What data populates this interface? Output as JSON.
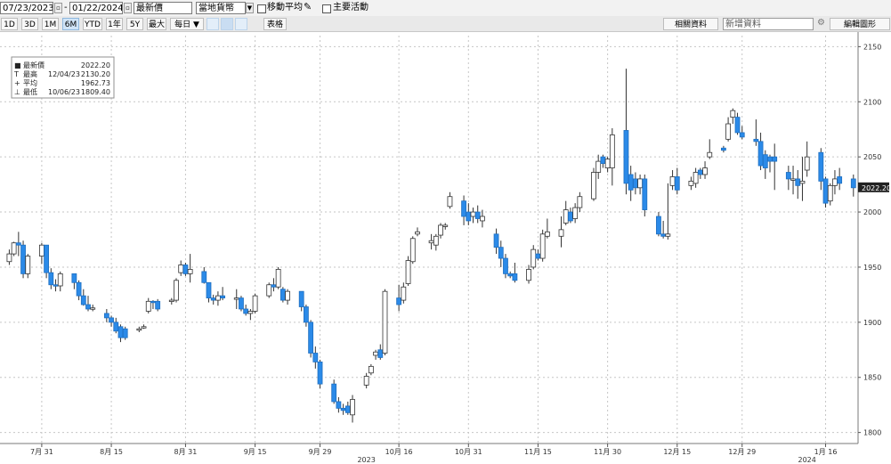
{
  "toolbar": {
    "start_date": "07/23/2023",
    "end_date": "01/22/2024",
    "price_type": "最新價",
    "currency": "當地貨幣",
    "moving_avg_label": "移動平均",
    "key_events_label": "主要活動",
    "periods": [
      "1D",
      "3D",
      "1M",
      "6M",
      "YTD",
      "1年",
      "5Y",
      "最大"
    ],
    "active_period": "6M",
    "frequency": "每日 ▼",
    "table_label": "表格",
    "related_data": "相關資料",
    "new_data": "新增資料",
    "edit_chart": "編輯圖形",
    "icons": [
      "calendar-icon",
      "dropdown-arrow-icon",
      "pencil-icon",
      "settings-icon"
    ]
  },
  "price_flag": "2022.20",
  "legend": {
    "rows": [
      {
        "symbol": "■",
        "name": "最新價",
        "date": "",
        "value": "2022.20"
      },
      {
        "symbol": "T",
        "name": "最高",
        "date": "12/04/23",
        "value": "2130.20"
      },
      {
        "symbol": "+",
        "name": "平均",
        "date": "",
        "value": "1962.73"
      },
      {
        "symbol": "⊥",
        "name": "最低",
        "date": "10/06/23",
        "value": "1809.40"
      }
    ]
  },
  "chart_data": {
    "type": "candlestick",
    "title": "",
    "xlabel": "",
    "ylabel": "",
    "ylim": [
      1790,
      2160
    ],
    "y_ticks": [
      1800,
      1850,
      1900,
      1950,
      2000,
      2050,
      2100,
      2150
    ],
    "y_tick_labels": [
      "1800",
      "1850",
      "1900",
      "1950",
      "2000",
      "2050",
      "2100",
      "2150"
    ],
    "grid": true,
    "up_color": "#ffffff",
    "down_color": "#2b8ae8",
    "x_ticks": [
      {
        "label": "7月 31",
        "date": "2023-07-31"
      },
      {
        "label": "8月 15",
        "date": "2023-08-15"
      },
      {
        "label": "8月 31",
        "date": "2023-08-31"
      },
      {
        "label": "9月 15",
        "date": "2023-09-15"
      },
      {
        "label": "9月 29",
        "date": "2023-09-29"
      },
      {
        "label": "10月 16",
        "date": "2023-10-16"
      },
      {
        "label": "10月 31",
        "date": "2023-10-31"
      },
      {
        "label": "11月 15",
        "date": "2023-11-15"
      },
      {
        "label": "11月 30",
        "date": "2023-11-30"
      },
      {
        "label": "12月 15",
        "date": "2023-12-15"
      },
      {
        "label": "12月 29",
        "date": "2023-12-29"
      },
      {
        "label": "1月 16",
        "date": "2024-01-16"
      }
    ],
    "year_labels": [
      {
        "label": "2023",
        "date": "2023-10-09"
      },
      {
        "label": "2024",
        "date": "2024-01-12"
      }
    ],
    "series": [
      {
        "d": "2023-07-24",
        "o": 1955,
        "h": 1966,
        "l": 1952,
        "c": 1962
      },
      {
        "d": "2023-07-25",
        "o": 1962,
        "h": 1973,
        "l": 1960,
        "c": 1972
      },
      {
        "d": "2023-07-26",
        "o": 1972,
        "h": 1982,
        "l": 1960,
        "c": 1970
      },
      {
        "d": "2023-07-27",
        "o": 1970,
        "h": 1974,
        "l": 1940,
        "c": 1944
      },
      {
        "d": "2023-07-28",
        "o": 1944,
        "h": 1962,
        "l": 1940,
        "c": 1960
      },
      {
        "d": "2023-07-31",
        "o": 1960,
        "h": 1972,
        "l": 1953,
        "c": 1970
      },
      {
        "d": "2023-08-01",
        "o": 1970,
        "h": 1970,
        "l": 1940,
        "c": 1945
      },
      {
        "d": "2023-08-02",
        "o": 1945,
        "h": 1949,
        "l": 1930,
        "c": 1934
      },
      {
        "d": "2023-08-03",
        "o": 1934,
        "h": 1939,
        "l": 1928,
        "c": 1933
      },
      {
        "d": "2023-08-04",
        "o": 1933,
        "h": 1946,
        "l": 1928,
        "c": 1944
      },
      {
        "d": "2023-08-07",
        "o": 1944,
        "h": 1944,
        "l": 1930,
        "c": 1936
      },
      {
        "d": "2023-08-08",
        "o": 1936,
        "h": 1938,
        "l": 1920,
        "c": 1924
      },
      {
        "d": "2023-08-09",
        "o": 1924,
        "h": 1930,
        "l": 1915,
        "c": 1916
      },
      {
        "d": "2023-08-10",
        "o": 1916,
        "h": 1924,
        "l": 1910,
        "c": 1912
      },
      {
        "d": "2023-08-11",
        "o": 1912,
        "h": 1916,
        "l": 1910,
        "c": 1913
      },
      {
        "d": "2023-08-14",
        "o": 1908,
        "h": 1912,
        "l": 1900,
        "c": 1904
      },
      {
        "d": "2023-08-15",
        "o": 1904,
        "h": 1906,
        "l": 1896,
        "c": 1900
      },
      {
        "d": "2023-08-16",
        "o": 1900,
        "h": 1904,
        "l": 1890,
        "c": 1892
      },
      {
        "d": "2023-08-17",
        "o": 1896,
        "h": 1898,
        "l": 1882,
        "c": 1886
      },
      {
        "d": "2023-08-18",
        "o": 1894,
        "h": 1896,
        "l": 1884,
        "c": 1886
      },
      {
        "d": "2023-08-21",
        "o": 1893,
        "h": 1896,
        "l": 1891,
        "c": 1894
      },
      {
        "d": "2023-08-22",
        "o": 1895,
        "h": 1898,
        "l": 1894,
        "c": 1896
      },
      {
        "d": "2023-08-23",
        "o": 1910,
        "h": 1922,
        "l": 1908,
        "c": 1919
      },
      {
        "d": "2023-08-24",
        "o": 1919,
        "h": 1920,
        "l": 1912,
        "c": 1918
      },
      {
        "d": "2023-08-25",
        "o": 1919,
        "h": 1921,
        "l": 1910,
        "c": 1912
      },
      {
        "d": "2023-08-28",
        "o": 1919,
        "h": 1922,
        "l": 1916,
        "c": 1920
      },
      {
        "d": "2023-08-29",
        "o": 1920,
        "h": 1940,
        "l": 1918,
        "c": 1938
      },
      {
        "d": "2023-08-30",
        "o": 1945,
        "h": 1956,
        "l": 1942,
        "c": 1952
      },
      {
        "d": "2023-08-31",
        "o": 1952,
        "h": 1954,
        "l": 1942,
        "c": 1944
      },
      {
        "d": "2023-09-01",
        "o": 1944,
        "h": 1962,
        "l": 1936,
        "c": 1948
      },
      {
        "d": "2023-09-04",
        "o": 1946,
        "h": 1950,
        "l": 1935,
        "c": 1936
      },
      {
        "d": "2023-09-05",
        "o": 1936,
        "h": 1936,
        "l": 1918,
        "c": 1922
      },
      {
        "d": "2023-09-06",
        "o": 1922,
        "h": 1925,
        "l": 1916,
        "c": 1920
      },
      {
        "d": "2023-09-07",
        "o": 1920,
        "h": 1928,
        "l": 1915,
        "c": 1924
      },
      {
        "d": "2023-09-08",
        "o": 1924,
        "h": 1932,
        "l": 1920,
        "c": 1922
      },
      {
        "d": "2023-09-11",
        "o": 1922,
        "h": 1930,
        "l": 1912,
        "c": 1922
      },
      {
        "d": "2023-09-12",
        "o": 1922,
        "h": 1924,
        "l": 1910,
        "c": 1912
      },
      {
        "d": "2023-09-13",
        "o": 1912,
        "h": 1916,
        "l": 1906,
        "c": 1908
      },
      {
        "d": "2023-09-14",
        "o": 1908,
        "h": 1912,
        "l": 1902,
        "c": 1910
      },
      {
        "d": "2023-09-15",
        "o": 1910,
        "h": 1926,
        "l": 1908,
        "c": 1924
      },
      {
        "d": "2023-09-18",
        "o": 1924,
        "h": 1936,
        "l": 1922,
        "c": 1934
      },
      {
        "d": "2023-09-19",
        "o": 1934,
        "h": 1940,
        "l": 1928,
        "c": 1932
      },
      {
        "d": "2023-09-20",
        "o": 1932,
        "h": 1950,
        "l": 1930,
        "c": 1948
      },
      {
        "d": "2023-09-21",
        "o": 1930,
        "h": 1932,
        "l": 1918,
        "c": 1920
      },
      {
        "d": "2023-09-22",
        "o": 1920,
        "h": 1930,
        "l": 1916,
        "c": 1928
      },
      {
        "d": "2023-09-25",
        "o": 1928,
        "h": 1928,
        "l": 1910,
        "c": 1914
      },
      {
        "d": "2023-09-26",
        "o": 1914,
        "h": 1916,
        "l": 1896,
        "c": 1900
      },
      {
        "d": "2023-09-27",
        "o": 1900,
        "h": 1902,
        "l": 1868,
        "c": 1872
      },
      {
        "d": "2023-09-28",
        "o": 1872,
        "h": 1878,
        "l": 1858,
        "c": 1864
      },
      {
        "d": "2023-09-29",
        "o": 1864,
        "h": 1866,
        "l": 1840,
        "c": 1844
      },
      {
        "d": "2023-10-02",
        "o": 1844,
        "h": 1848,
        "l": 1826,
        "c": 1828
      },
      {
        "d": "2023-10-03",
        "o": 1828,
        "h": 1832,
        "l": 1818,
        "c": 1822
      },
      {
        "d": "2023-10-04",
        "o": 1822,
        "h": 1826,
        "l": 1816,
        "c": 1820
      },
      {
        "d": "2023-10-05",
        "o": 1824,
        "h": 1828,
        "l": 1816,
        "c": 1818
      },
      {
        "d": "2023-10-06",
        "o": 1816,
        "h": 1834,
        "l": 1809,
        "c": 1830
      },
      {
        "d": "2023-10-09",
        "o": 1843,
        "h": 1854,
        "l": 1840,
        "c": 1851
      },
      {
        "d": "2023-10-10",
        "o": 1854,
        "h": 1862,
        "l": 1852,
        "c": 1860
      },
      {
        "d": "2023-10-11",
        "o": 1870,
        "h": 1875,
        "l": 1866,
        "c": 1873
      },
      {
        "d": "2023-10-12",
        "o": 1875,
        "h": 1880,
        "l": 1866,
        "c": 1868
      },
      {
        "d": "2023-10-13",
        "o": 1872,
        "h": 1930,
        "l": 1870,
        "c": 1928
      },
      {
        "d": "2023-10-16",
        "o": 1922,
        "h": 1934,
        "l": 1910,
        "c": 1916
      },
      {
        "d": "2023-10-17",
        "o": 1920,
        "h": 1936,
        "l": 1917,
        "c": 1932
      },
      {
        "d": "2023-10-18",
        "o": 1935,
        "h": 1960,
        "l": 1933,
        "c": 1956
      },
      {
        "d": "2023-10-19",
        "o": 1955,
        "h": 1978,
        "l": 1953,
        "c": 1976
      },
      {
        "d": "2023-10-20",
        "o": 1980,
        "h": 1986,
        "l": 1978,
        "c": 1982
      },
      {
        "d": "2023-10-23",
        "o": 1972,
        "h": 1980,
        "l": 1966,
        "c": 1974
      },
      {
        "d": "2023-10-24",
        "o": 1970,
        "h": 1980,
        "l": 1965,
        "c": 1978
      },
      {
        "d": "2023-10-25",
        "o": 1979,
        "h": 1990,
        "l": 1976,
        "c": 1988
      },
      {
        "d": "2023-10-26",
        "o": 1987,
        "h": 1990,
        "l": 1984,
        "c": 1988
      },
      {
        "d": "2023-10-27",
        "o": 2005,
        "h": 2018,
        "l": 2003,
        "c": 2014
      },
      {
        "d": "2023-10-30",
        "o": 2010,
        "h": 2015,
        "l": 1988,
        "c": 1996
      },
      {
        "d": "2023-10-31",
        "o": 2000,
        "h": 2008,
        "l": 1988,
        "c": 1992
      },
      {
        "d": "2023-11-01",
        "o": 1996,
        "h": 2004,
        "l": 1990,
        "c": 2000
      },
      {
        "d": "2023-11-02",
        "o": 2000,
        "h": 2006,
        "l": 1990,
        "c": 1994
      },
      {
        "d": "2023-11-03",
        "o": 1992,
        "h": 2002,
        "l": 1986,
        "c": 1996
      },
      {
        "d": "2023-11-06",
        "o": 1980,
        "h": 1985,
        "l": 1962,
        "c": 1968
      },
      {
        "d": "2023-11-07",
        "o": 1968,
        "h": 1974,
        "l": 1950,
        "c": 1958
      },
      {
        "d": "2023-11-08",
        "o": 1958,
        "h": 1962,
        "l": 1940,
        "c": 1944
      },
      {
        "d": "2023-11-09",
        "o": 1944,
        "h": 1946,
        "l": 1940,
        "c": 1942
      },
      {
        "d": "2023-11-10",
        "o": 1944,
        "h": 1954,
        "l": 1936,
        "c": 1938
      },
      {
        "d": "2023-11-13",
        "o": 1938,
        "h": 1952,
        "l": 1935,
        "c": 1948
      },
      {
        "d": "2023-11-14",
        "o": 1950,
        "h": 1970,
        "l": 1948,
        "c": 1966
      },
      {
        "d": "2023-11-15",
        "o": 1962,
        "h": 1966,
        "l": 1956,
        "c": 1958
      },
      {
        "d": "2023-11-16",
        "o": 1958,
        "h": 1984,
        "l": 1955,
        "c": 1980
      },
      {
        "d": "2023-11-17",
        "o": 1978,
        "h": 1994,
        "l": 1976,
        "c": 1982
      },
      {
        "d": "2023-11-20",
        "o": 1978,
        "h": 1996,
        "l": 1968,
        "c": 1984
      },
      {
        "d": "2023-11-21",
        "o": 1990,
        "h": 2010,
        "l": 1988,
        "c": 2002
      },
      {
        "d": "2023-11-22",
        "o": 2000,
        "h": 2004,
        "l": 1990,
        "c": 1992
      },
      {
        "d": "2023-11-23",
        "o": 1994,
        "h": 2008,
        "l": 1990,
        "c": 2004
      },
      {
        "d": "2023-11-24",
        "o": 2004,
        "h": 2018,
        "l": 2000,
        "c": 2014
      },
      {
        "d": "2023-11-27",
        "o": 2012,
        "h": 2040,
        "l": 2010,
        "c": 2036
      },
      {
        "d": "2023-11-28",
        "o": 2036,
        "h": 2052,
        "l": 2030,
        "c": 2046
      },
      {
        "d": "2023-11-29",
        "o": 2050,
        "h": 2052,
        "l": 2040,
        "c": 2044
      },
      {
        "d": "2023-11-30",
        "o": 2040,
        "h": 2050,
        "l": 2036,
        "c": 2048
      },
      {
        "d": "2023-12-01",
        "o": 2040,
        "h": 2076,
        "l": 2024,
        "c": 2070
      },
      {
        "d": "2023-12-04",
        "o": 2074,
        "h": 2130,
        "l": 2016,
        "c": 2026
      },
      {
        "d": "2023-12-05",
        "o": 2034,
        "h": 2042,
        "l": 2010,
        "c": 2020
      },
      {
        "d": "2023-12-06",
        "o": 2030,
        "h": 2036,
        "l": 2016,
        "c": 2022
      },
      {
        "d": "2023-12-07",
        "o": 2022,
        "h": 2034,
        "l": 2016,
        "c": 2030
      },
      {
        "d": "2023-12-08",
        "o": 2030,
        "h": 2034,
        "l": 1996,
        "c": 2002
      },
      {
        "d": "2023-12-11",
        "o": 1996,
        "h": 2000,
        "l": 1978,
        "c": 1980
      },
      {
        "d": "2023-12-12",
        "o": 1980,
        "h": 1992,
        "l": 1976,
        "c": 1978
      },
      {
        "d": "2023-12-13",
        "o": 1978,
        "h": 2026,
        "l": 1975,
        "c": 1980
      },
      {
        "d": "2023-12-14",
        "o": 2024,
        "h": 2038,
        "l": 2020,
        "c": 2032
      },
      {
        "d": "2023-12-15",
        "o": 2032,
        "h": 2040,
        "l": 2016,
        "c": 2020
      },
      {
        "d": "2023-12-18",
        "o": 2024,
        "h": 2032,
        "l": 2020,
        "c": 2028
      },
      {
        "d": "2023-12-19",
        "o": 2026,
        "h": 2040,
        "l": 2022,
        "c": 2036
      },
      {
        "d": "2023-12-20",
        "o": 2038,
        "h": 2040,
        "l": 2030,
        "c": 2034
      },
      {
        "d": "2023-12-21",
        "o": 2034,
        "h": 2046,
        "l": 2030,
        "c": 2040
      },
      {
        "d": "2023-12-22",
        "o": 2050,
        "h": 2066,
        "l": 2048,
        "c": 2054
      },
      {
        "d": "2023-12-25",
        "o": 2058,
        "h": 2060,
        "l": 2054,
        "c": 2056
      },
      {
        "d": "2023-12-26",
        "o": 2066,
        "h": 2086,
        "l": 2064,
        "c": 2080
      },
      {
        "d": "2023-12-27",
        "o": 2086,
        "h": 2094,
        "l": 2080,
        "c": 2092
      },
      {
        "d": "2023-12-28",
        "o": 2086,
        "h": 2090,
        "l": 2070,
        "c": 2072
      },
      {
        "d": "2023-12-29",
        "o": 2072,
        "h": 2078,
        "l": 2066,
        "c": 2068
      },
      {
        "d": "2024-01-01",
        "o": 2066,
        "h": 2084,
        "l": 2060,
        "c": 2064
      },
      {
        "d": "2024-01-02",
        "o": 2064,
        "h": 2072,
        "l": 2038,
        "c": 2042
      },
      {
        "d": "2024-01-03",
        "o": 2052,
        "h": 2056,
        "l": 2030,
        "c": 2040
      },
      {
        "d": "2024-01-04",
        "o": 2050,
        "h": 2052,
        "l": 2036,
        "c": 2046
      },
      {
        "d": "2024-01-05",
        "o": 2050,
        "h": 2062,
        "l": 2020,
        "c": 2046
      },
      {
        "d": "2024-01-08",
        "o": 2036,
        "h": 2042,
        "l": 2020,
        "c": 2030
      },
      {
        "d": "2024-01-09",
        "o": 2030,
        "h": 2042,
        "l": 2016,
        "c": 2030
      },
      {
        "d": "2024-01-10",
        "o": 2030,
        "h": 2038,
        "l": 2012,
        "c": 2024
      },
      {
        "d": "2024-01-11",
        "o": 2026,
        "h": 2050,
        "l": 2010,
        "c": 2028
      },
      {
        "d": "2024-01-12",
        "o": 2038,
        "h": 2064,
        "l": 2032,
        "c": 2050
      },
      {
        "d": "2024-01-15",
        "o": 2054,
        "h": 2058,
        "l": 2020,
        "c": 2028
      },
      {
        "d": "2024-01-16",
        "o": 2030,
        "h": 2032,
        "l": 2004,
        "c": 2008
      },
      {
        "d": "2024-01-17",
        "o": 2010,
        "h": 2026,
        "l": 2006,
        "c": 2024
      },
      {
        "d": "2024-01-18",
        "o": 2024,
        "h": 2038,
        "l": 2016,
        "c": 2030
      },
      {
        "d": "2024-01-19",
        "o": 2032,
        "h": 2040,
        "l": 2020,
        "c": 2026
      },
      {
        "d": "2024-01-22",
        "o": 2030,
        "h": 2034,
        "l": 2014,
        "c": 2022
      }
    ]
  }
}
